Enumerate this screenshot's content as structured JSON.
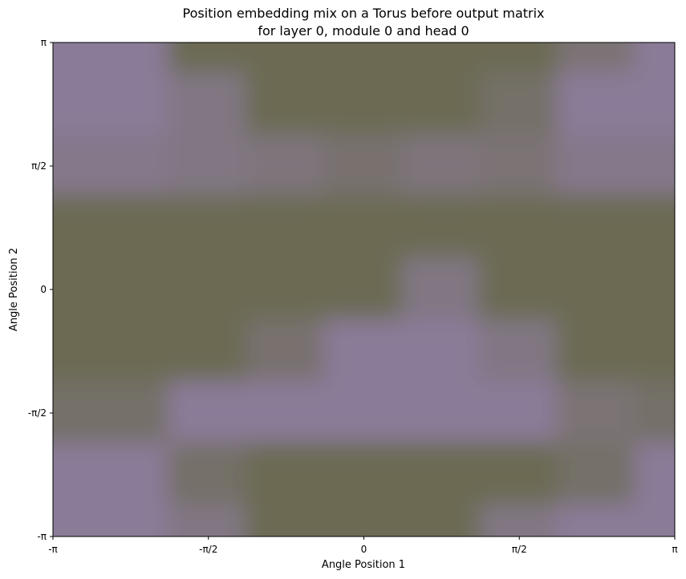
{
  "chart_data": {
    "type": "heatmap",
    "title": [
      "Position embedding mix on a Torus before output matrix",
      "for layer 0, module 0 and head 0"
    ],
    "xlabel": "Angle Position 1",
    "ylabel": "Angle Position 2",
    "xlim": [
      -3.14159,
      3.14159
    ],
    "ylim": [
      -3.14159,
      3.14159
    ],
    "xticks": [
      {
        "value": -3.14159,
        "label": "-π"
      },
      {
        "value": -1.5708,
        "label": "-π/2"
      },
      {
        "value": 0,
        "label": "0"
      },
      {
        "value": 1.5708,
        "label": "π/2"
      },
      {
        "value": 3.14159,
        "label": "π"
      }
    ],
    "yticks": [
      {
        "value": -3.14159,
        "label": "-π"
      },
      {
        "value": -1.5708,
        "label": "-π/2"
      },
      {
        "value": 0,
        "label": "0"
      },
      {
        "value": 1.5708,
        "label": "π/2"
      },
      {
        "value": 3.14159,
        "label": "π"
      }
    ],
    "colors": {
      "low": "#8a7c98",
      "high": "#6c6a52"
    },
    "grid": false,
    "regions_description": "two-class blurred map on the torus: purple regions = low, olive regions = high",
    "cells": {
      "x": [
        -3.14159,
        -2.35619,
        -1.5708,
        -0.7854,
        0,
        0.7854,
        1.5708,
        2.35619,
        3.14159
      ],
      "y": [
        -3.14159,
        -2.35619,
        -1.5708,
        -0.7854,
        0,
        0.7854,
        1.5708,
        2.35619,
        3.14159
      ],
      "z_rows_top_to_bottom": [
        [
          0,
          0,
          1,
          1,
          1,
          1,
          1,
          0.5,
          0
        ],
        [
          0,
          0,
          0.3,
          1,
          1,
          1,
          0.7,
          0,
          0
        ],
        [
          0.2,
          0.2,
          0.3,
          0.4,
          0.6,
          0.4,
          0.5,
          0.2,
          0.2
        ],
        [
          1,
          1,
          1,
          1,
          1,
          1,
          1,
          1,
          1
        ],
        [
          1,
          1,
          1,
          1,
          1,
          0.3,
          1,
          1,
          1
        ],
        [
          1,
          1,
          1,
          0.6,
          0,
          0,
          0.3,
          1,
          1
        ],
        [
          0.7,
          0.7,
          0,
          0,
          0,
          0,
          0,
          0.5,
          0.7
        ],
        [
          0,
          0,
          0.7,
          1,
          1,
          1,
          1,
          0.7,
          0
        ],
        [
          0,
          0,
          0.3,
          1,
          1,
          1,
          0.3,
          0,
          0
        ]
      ]
    }
  }
}
